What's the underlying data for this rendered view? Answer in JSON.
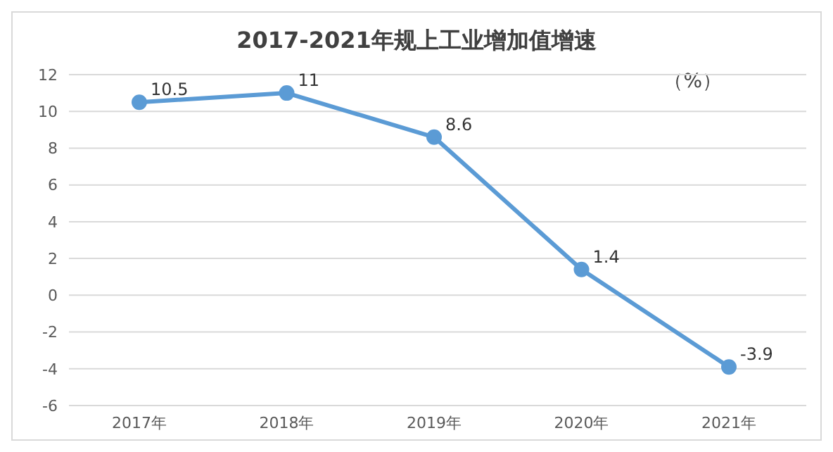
{
  "chart_data": {
    "type": "line",
    "title": "2017-2021年规上工业增加值增速",
    "ylabel": "（%）",
    "categories": [
      "2017年",
      "2018年",
      "2019年",
      "2020年",
      "2021年"
    ],
    "series": [
      {
        "color": "#5b9bd5",
        "values": [
          10.5,
          11,
          8.6,
          1.4,
          -3.9
        ]
      }
    ],
    "ylim": [
      -6,
      12
    ],
    "yticks": [
      -6,
      -4,
      -2,
      0,
      2,
      4,
      6,
      8,
      10,
      12
    ],
    "grid": "y",
    "marker": "circle",
    "line_style": "solid",
    "data_labels": true,
    "legend": false
  }
}
